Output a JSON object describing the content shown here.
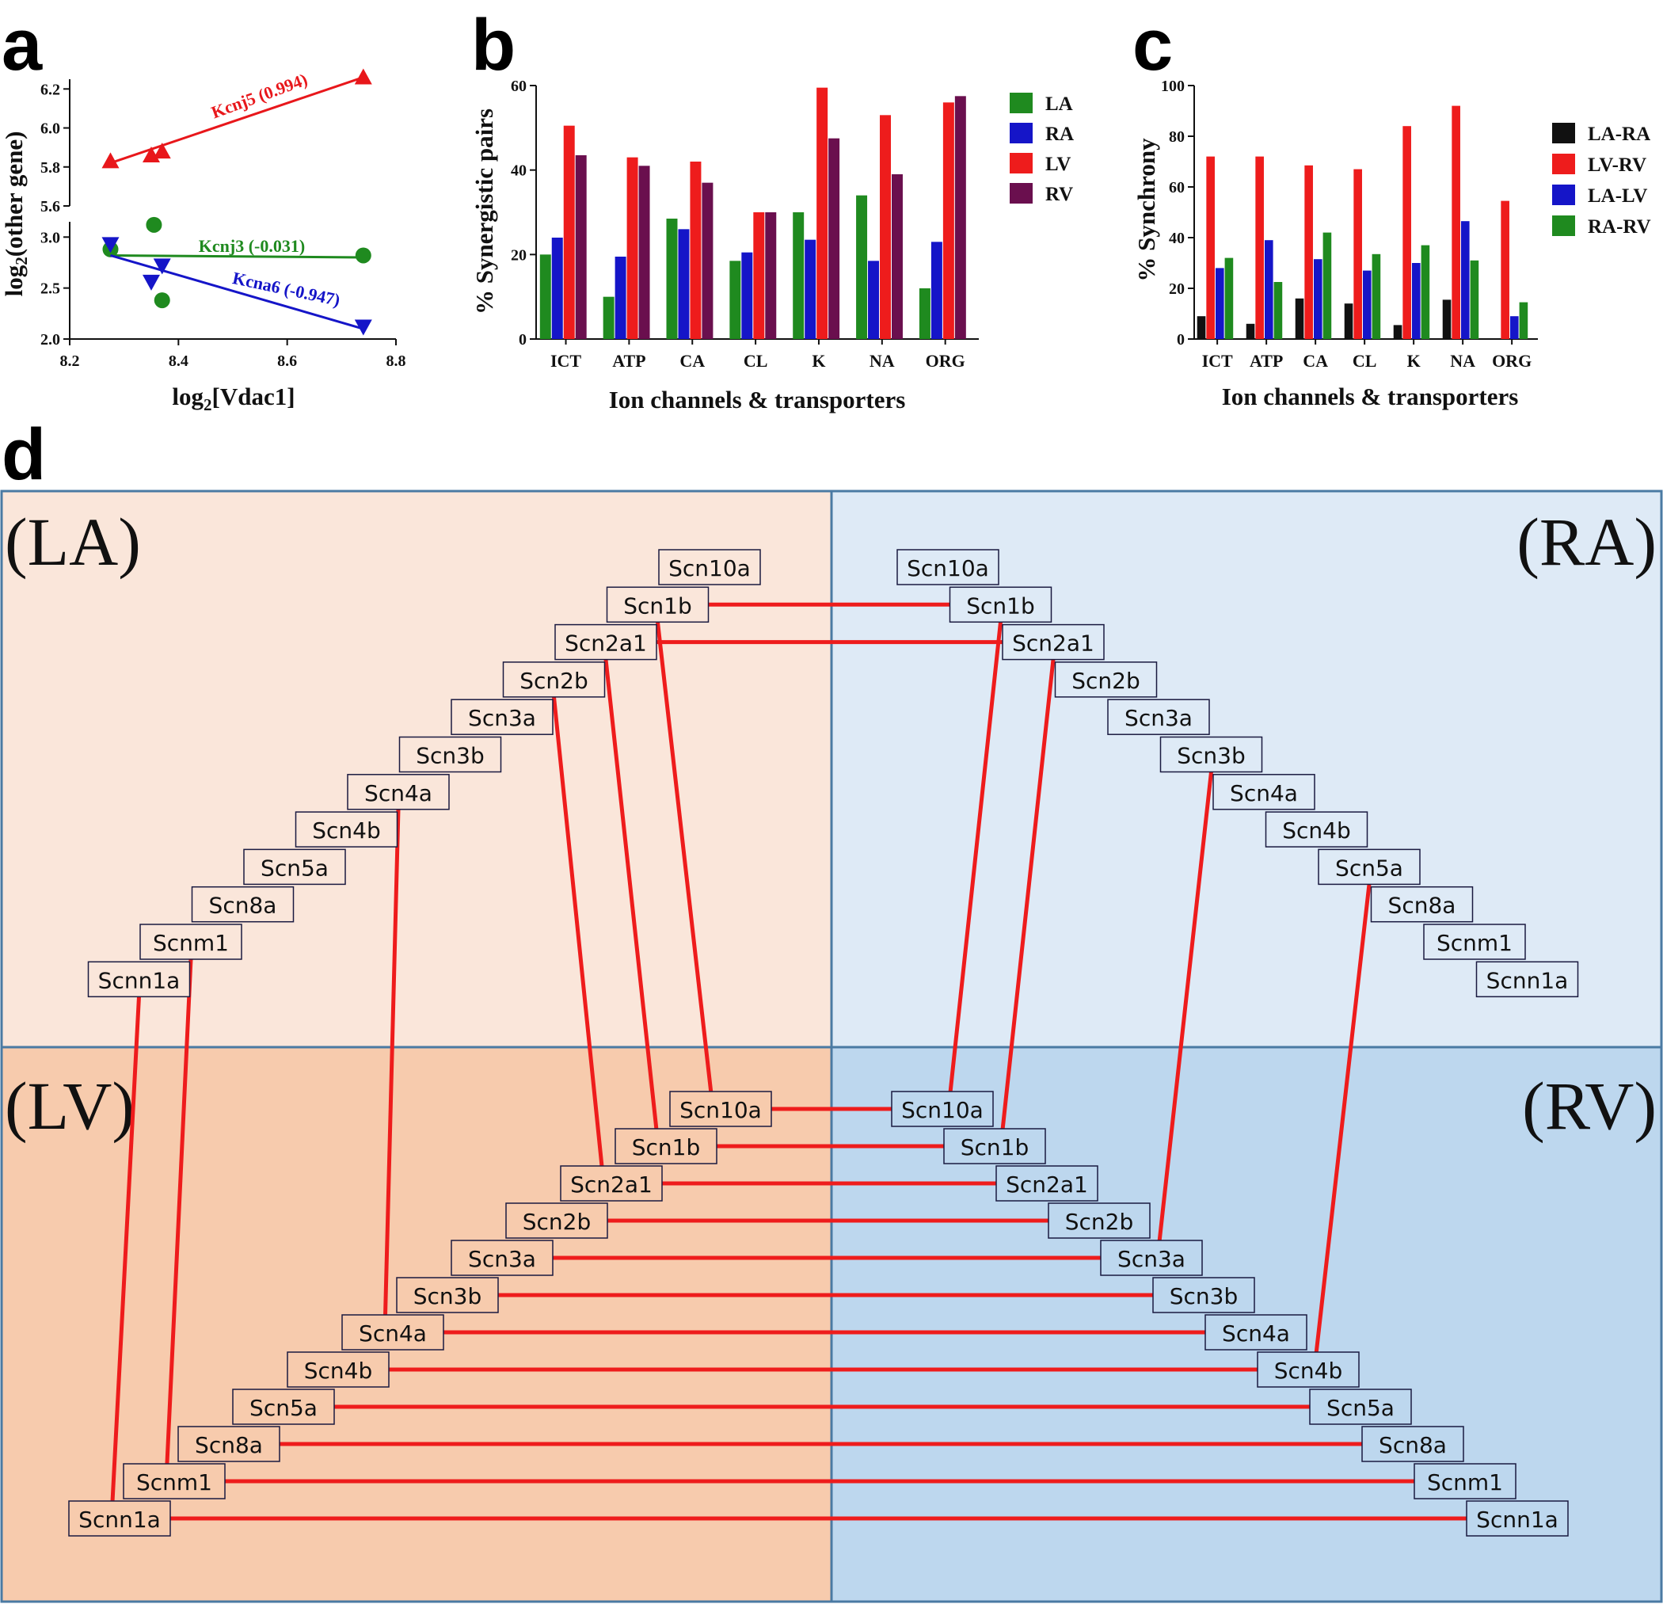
{
  "panel_labels": [
    "a",
    "b",
    "c",
    "d"
  ],
  "chart_data": [
    {
      "panel": "a",
      "type": "scatter",
      "xlabel_pre": "log",
      "xlabel_sub": "2",
      "xlabel_post": "[Vdac1]",
      "ylabel_pre": "log",
      "ylabel_sub": "2",
      "ylabel_post": "(other gene)",
      "xlim": [
        8.2,
        8.8
      ],
      "x_ticks": [
        "8.2",
        "8.4",
        "8.6",
        "8.8"
      ],
      "y_segments": [
        {
          "ylim": [
            5.6,
            6.25
          ],
          "ticks": [
            "5.6",
            "5.8",
            "6.0",
            "6.2"
          ]
        },
        {
          "ylim": [
            2.0,
            3.15
          ],
          "ticks": [
            "2.0",
            "2.5",
            "3.0"
          ]
        }
      ],
      "series": [
        {
          "label": "Kcnj5 (0.994)",
          "color": "#e8171b",
          "marker": "triangle-up",
          "segment": 0,
          "x": [
            8.275,
            8.35,
            8.37,
            8.74
          ],
          "y": [
            5.83,
            5.86,
            5.88,
            6.26
          ],
          "fit": [
            [
              8.275,
              5.82
            ],
            [
              8.74,
              6.26
            ]
          ]
        },
        {
          "label": "Kcnj3 (-0.031)",
          "color": "#1f8a1f",
          "marker": "circle",
          "segment": 1,
          "x": [
            8.275,
            8.355,
            8.37,
            8.74
          ],
          "y": [
            2.88,
            3.12,
            2.38,
            2.82
          ],
          "fit": [
            [
              8.275,
              2.82
            ],
            [
              8.74,
              2.8
            ]
          ]
        },
        {
          "label": "Kcna6 (-0.947)",
          "color": "#1515c8",
          "marker": "triangle-down",
          "segment": 1,
          "x": [
            8.275,
            8.35,
            8.37,
            8.74
          ],
          "y": [
            2.93,
            2.56,
            2.72,
            2.12
          ],
          "fit": [
            [
              8.275,
              2.82
            ],
            [
              8.74,
              2.1
            ]
          ]
        }
      ]
    },
    {
      "panel": "b",
      "type": "bar",
      "ylabel": "% Synergistic pairs",
      "xlabel": "Ion channels & transporters",
      "ylim": [
        0,
        60
      ],
      "y_ticks": [
        "0",
        "20",
        "40",
        "60"
      ],
      "categories": [
        "ICT",
        "ATP",
        "CA",
        "CL",
        "K",
        "NA",
        "ORG"
      ],
      "series": [
        {
          "name": "LA",
          "color": "#1f8a1f",
          "values": [
            20,
            10,
            28.5,
            18.5,
            30,
            34,
            12
          ]
        },
        {
          "name": "RA",
          "color": "#1515c8",
          "values": [
            24,
            19.5,
            26,
            20.5,
            23.5,
            18.5,
            23
          ]
        },
        {
          "name": "LV",
          "color": "#ee1c1c",
          "values": [
            50.5,
            43,
            42,
            30,
            59.5,
            53,
            56
          ]
        },
        {
          "name": "RV",
          "color": "#6a0f4e",
          "values": [
            43.5,
            41,
            37,
            30,
            47.5,
            39,
            57.5
          ]
        }
      ]
    },
    {
      "panel": "c",
      "type": "bar",
      "ylabel": "% Synchrony",
      "xlabel": "Ion channels & transporters",
      "ylim": [
        0,
        100
      ],
      "y_ticks": [
        "0",
        "20",
        "40",
        "60",
        "80",
        "100"
      ],
      "categories": [
        "ICT",
        "ATP",
        "CA",
        "CL",
        "K",
        "NA",
        "ORG"
      ],
      "series": [
        {
          "name": "LA-RA",
          "color": "#111111",
          "values": [
            9,
            6,
            16,
            14,
            5.5,
            15.5,
            0
          ]
        },
        {
          "name": "LV-RV",
          "color": "#ee1c1c",
          "values": [
            72,
            72,
            68.5,
            67,
            84,
            92,
            54.5
          ]
        },
        {
          "name": "LA-LV",
          "color": "#1515c8",
          "values": [
            28,
            39,
            31.5,
            27,
            30,
            46.5,
            9
          ]
        },
        {
          "name": "RA-RV",
          "color": "#1f8a1f",
          "values": [
            32,
            22.5,
            42,
            33.5,
            37,
            31,
            14.5
          ]
        }
      ]
    }
  ],
  "diagram": {
    "regions": [
      "(LA)",
      "(RA)",
      "(LV)",
      "(RV)"
    ],
    "region_colors": {
      "LA": "#fae6da",
      "RA": "#deeaf6",
      "LV": "#f7cbad",
      "RV": "#bdd7ee",
      "border": "#4a7aa3",
      "line": "#ee1c1c"
    },
    "genes": [
      "Scn10a",
      "Scn1b",
      "Scn2a1",
      "Scn2b",
      "Scn3a",
      "Scn3b",
      "Scn4a",
      "Scn4b",
      "Scn5a",
      "Scn8a",
      "Scnm1",
      "Scnn1a"
    ],
    "links": [
      [
        "LA",
        "Scn1b",
        "RA",
        "Scn1b"
      ],
      [
        "LA",
        "Scn2a1",
        "RA",
        "Scn2a1"
      ],
      [
        "LA",
        "Scn1b",
        "LV",
        "Scn10a"
      ],
      [
        "LA",
        "Scn2a1",
        "LV",
        "Scn1b"
      ],
      [
        "LA",
        "Scn2b",
        "LV",
        "Scn2a1"
      ],
      [
        "LA",
        "Scn4a",
        "LV",
        "Scn4a"
      ],
      [
        "LA",
        "Scnm1",
        "LV",
        "Scnm1"
      ],
      [
        "LA",
        "Scnn1a",
        "LV",
        "Scnn1a"
      ],
      [
        "RA",
        "Scn1b",
        "RV",
        "Scn10a"
      ],
      [
        "RA",
        "Scn2a1",
        "RV",
        "Scn1b"
      ],
      [
        "RA",
        "Scn3b",
        "RV",
        "Scn3a"
      ],
      [
        "RA",
        "Scn5a",
        "RV",
        "Scn4b"
      ],
      [
        "LV",
        "Scn10a",
        "RV",
        "Scn10a"
      ],
      [
        "LV",
        "Scn1b",
        "RV",
        "Scn1b"
      ],
      [
        "LV",
        "Scn2a1",
        "RV",
        "Scn2a1"
      ],
      [
        "LV",
        "Scn2b",
        "RV",
        "Scn2b"
      ],
      [
        "LV",
        "Scn3a",
        "RV",
        "Scn3a"
      ],
      [
        "LV",
        "Scn3b",
        "RV",
        "Scn3b"
      ],
      [
        "LV",
        "Scn4a",
        "RV",
        "Scn4a"
      ],
      [
        "LV",
        "Scn4b",
        "RV",
        "Scn4b"
      ],
      [
        "LV",
        "Scn5a",
        "RV",
        "Scn5a"
      ],
      [
        "LV",
        "Scn8a",
        "RV",
        "Scn8a"
      ],
      [
        "LV",
        "Scnm1",
        "RV",
        "Scnm1"
      ],
      [
        "LV",
        "Scnn1a",
        "RV",
        "Scnn1a"
      ]
    ]
  }
}
